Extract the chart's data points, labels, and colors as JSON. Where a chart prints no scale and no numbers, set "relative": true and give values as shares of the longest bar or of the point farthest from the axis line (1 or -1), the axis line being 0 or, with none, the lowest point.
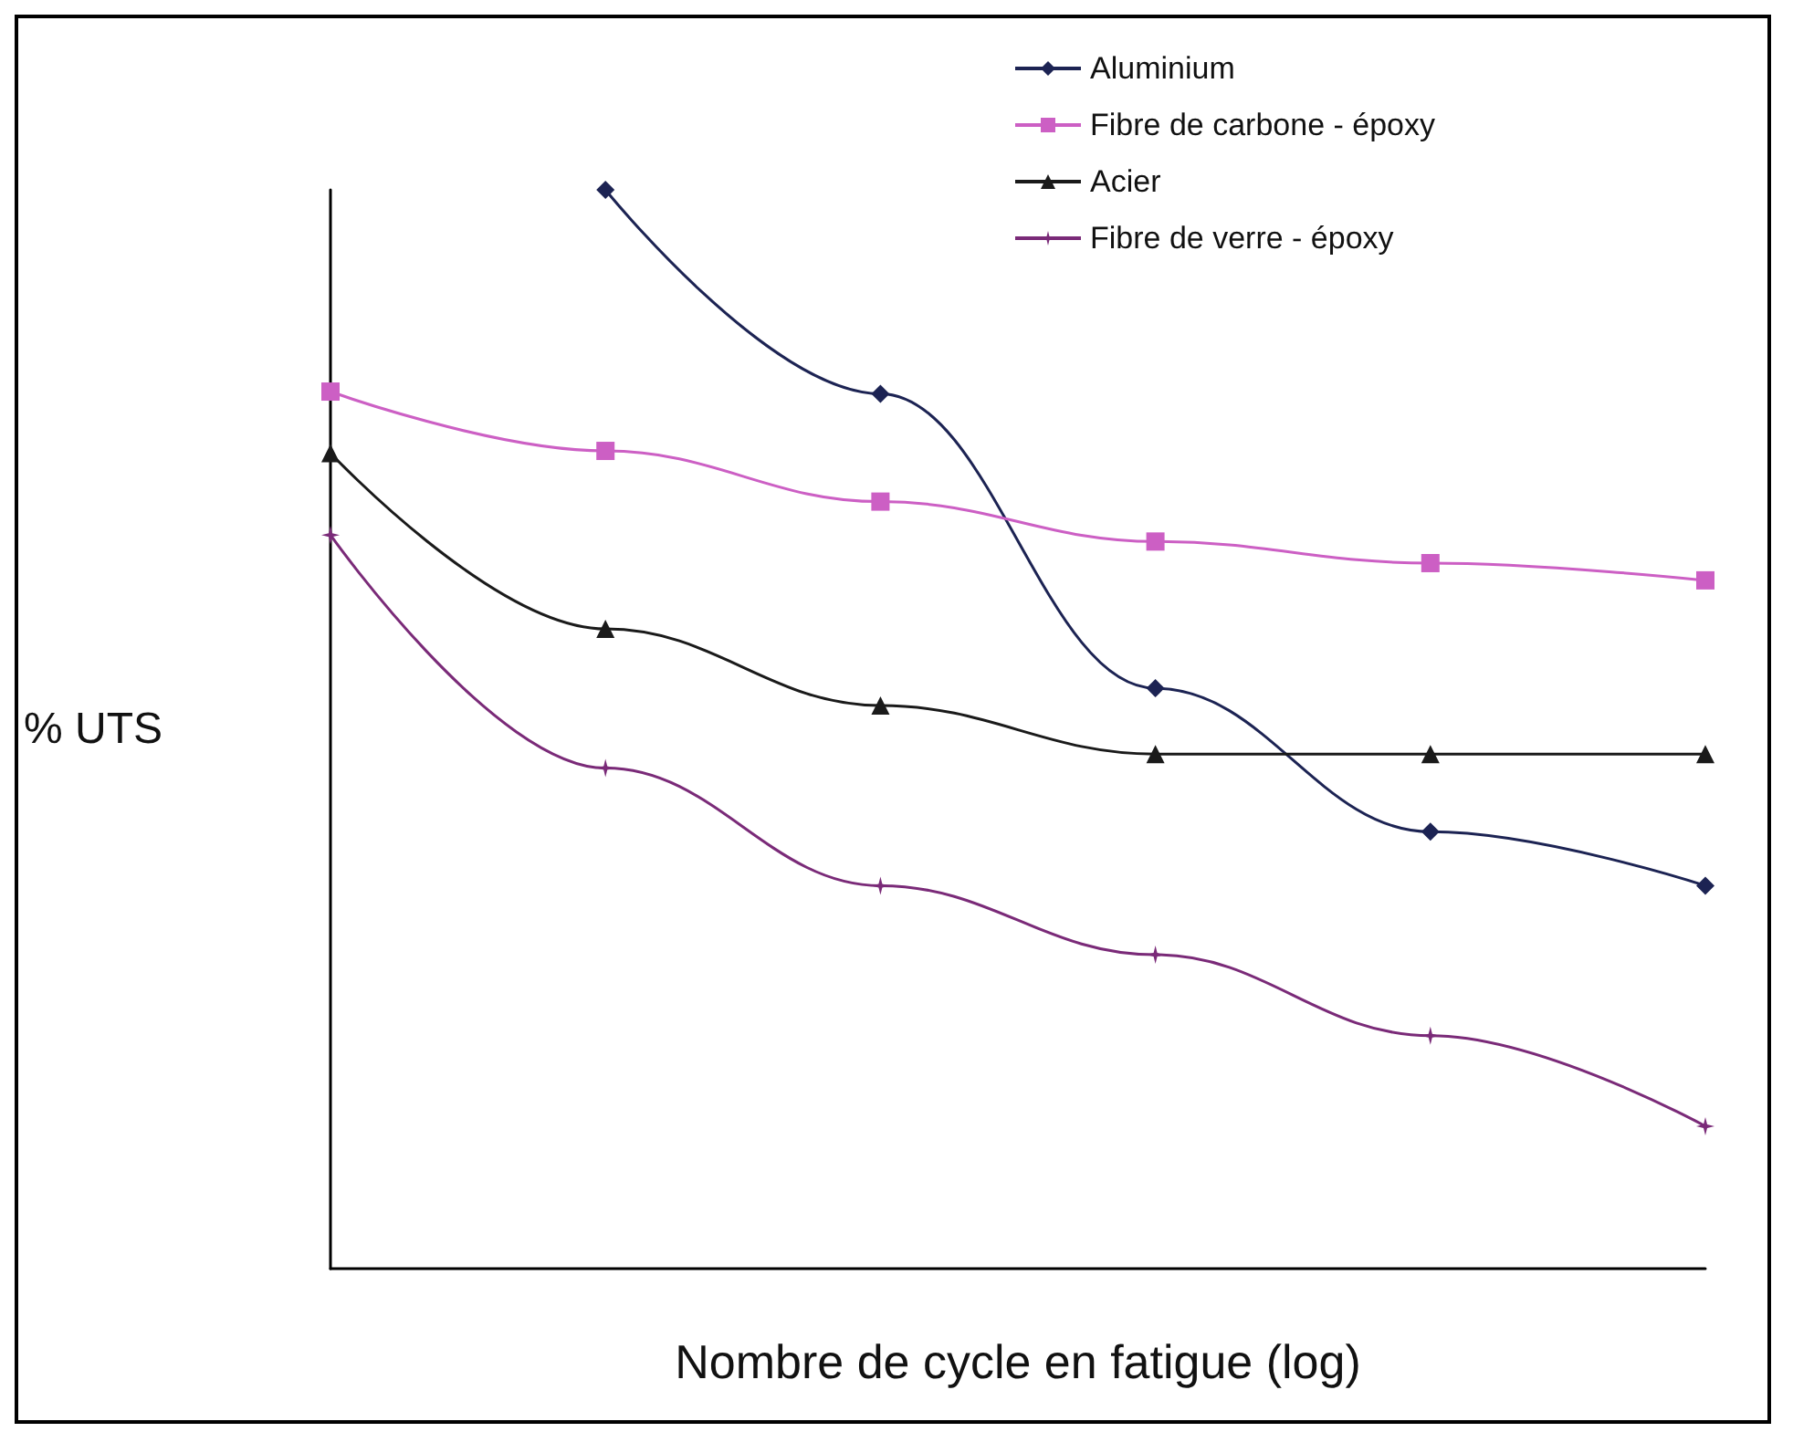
{
  "chart_data": {
    "type": "line",
    "relative": true,
    "xlabel": "Nombre de cycle en fatigue (log)",
    "ylabel": "% UTS",
    "categories": [
      null,
      null,
      null,
      null,
      null,
      null
    ],
    "legend": "top right",
    "grid": false,
    "series": [
      {
        "name": "Aluminium",
        "color": "#1c2353",
        "marker": "diamond",
        "values": [
          null,
          1,
          0.811,
          0.538,
          0.405,
          0.355
        ]
      },
      {
        "name": "Fibre de carbone - époxy",
        "color": "#cc5fc4",
        "marker": "square",
        "values": [
          0.813,
          0.758,
          0.711,
          0.674,
          0.654,
          0.638
        ]
      },
      {
        "name": "Acier",
        "color": "#1a1a1a",
        "marker": "triangle",
        "values": [
          0.756,
          0.593,
          0.522,
          0.477,
          0.477,
          0.477
        ]
      },
      {
        "name": "Fibre de verre - époxy",
        "color": "#7a2a78",
        "marker": "star",
        "values": [
          0.68,
          0.464,
          0.355,
          0.291,
          0.216,
          0.132
        ]
      }
    ]
  }
}
